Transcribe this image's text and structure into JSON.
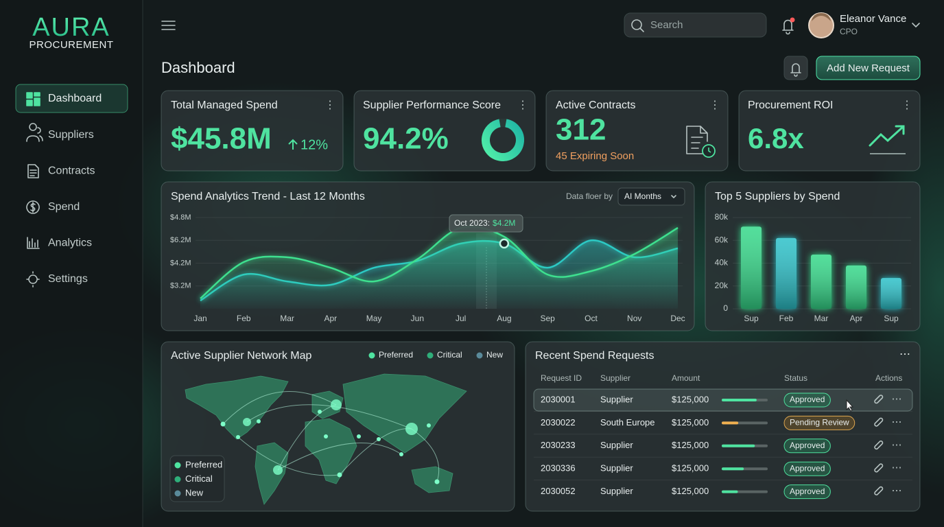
{
  "sidebar": {
    "logo": "AURA",
    "logo_sub": "PROCUREMENT",
    "nav": [
      "Dashboard",
      "Suppliers",
      "Contracts",
      "Spend",
      "Analytics",
      "Settings"
    ]
  },
  "header": {
    "search_placeholder": "Search",
    "user_name": "Eleanor Vance",
    "user_role": "CPO"
  },
  "page_title": "Dashboard",
  "action_button": "Add New Request",
  "kpis": [
    {
      "title": "Total Managed Spend",
      "value": "$45.8M",
      "change": "12%"
    },
    {
      "title": "Supplier Performance Score",
      "value": "94.2%"
    },
    {
      "title": "Active Contracts",
      "value": "312",
      "note": "45 Expiring Soon"
    },
    {
      "title": "Procurement ROI",
      "value": "6.8x"
    }
  ],
  "trend_chart": {
    "type": "line",
    "title": "Spend Analytics Trend - Last 12 Months",
    "filter_label": "Data floer by",
    "filter_value": "AI Months",
    "y_labels": [
      "$4.8M",
      "$6.2M",
      "$4.2M",
      "$3.2M"
    ],
    "ylim": [
      2.2,
      6.2
    ],
    "categories": [
      "Jan",
      "Feb",
      "Mar",
      "Apr",
      "May",
      "Jun",
      "Jul",
      "Aug",
      "Sep",
      "Oct",
      "Nov",
      "Dec"
    ],
    "series": [
      {
        "color": "#3ee08f",
        "values": [
          2.65,
          4.25,
          4.46,
          4.0,
          3.4,
          4.37,
          5.75,
          5.36,
          3.7,
          3.85,
          4.6,
          5.75
        ]
      },
      {
        "color": "#2cc9c4",
        "values": [
          2.56,
          3.7,
          3.4,
          3.25,
          4.0,
          4.3,
          5.06,
          5.06,
          4.0,
          5.2,
          4.46,
          4.85
        ]
      }
    ],
    "tooltip": {
      "label": "Oct 2023:",
      "value": "$4.2M"
    }
  },
  "suppliers_chart": {
    "type": "bar",
    "title": "Top 5 Suppliers by Spend",
    "categories": [
      "Sup",
      "Feb",
      "Mar",
      "Apr",
      "Sup"
    ],
    "values": [
      72000,
      62000,
      47500,
      38000,
      27000
    ],
    "colors": [
      "#35d98a",
      "#2cc1c9",
      "#35d98a",
      "#35d98a",
      "#2cc1c9"
    ],
    "ylim": [
      0,
      80000
    ],
    "yticks": [
      0,
      {
        "value": 20000,
        "label": "20k"
      },
      {
        "value": 40000,
        "label": "40k"
      },
      {
        "value": 60000,
        "label": "60k"
      },
      {
        "value": 80000,
        "label": "80k"
      }
    ]
  },
  "map": {
    "title": "Active Supplier Network Map",
    "legend": [
      "Preferred",
      "Critical",
      "New"
    ]
  },
  "requests": {
    "title": "Recent Spend Requests",
    "columns": [
      "Request ID",
      "Supplier",
      "Amount",
      "Status",
      "Actions"
    ],
    "progress_lim": [
      0,
      100
    ],
    "rows": [
      {
        "id": "2030001",
        "supplier": "Supplier",
        "amount": "$125,000",
        "progress": 76,
        "status": "Approved"
      },
      {
        "id": "2030022",
        "supplier": "South Europe",
        "amount": "$125,000",
        "progress": 36,
        "status": "Pending Review"
      },
      {
        "id": "2030233",
        "supplier": "Supplier",
        "amount": "$125,000",
        "progress": 72,
        "status": "Approved"
      },
      {
        "id": "2030336",
        "supplier": "Supplier",
        "amount": "$125,000",
        "progress": 48,
        "status": "Approved"
      },
      {
        "id": "2030052",
        "supplier": "Supplier",
        "amount": "$125,000",
        "progress": 35,
        "status": "Approved"
      }
    ]
  }
}
